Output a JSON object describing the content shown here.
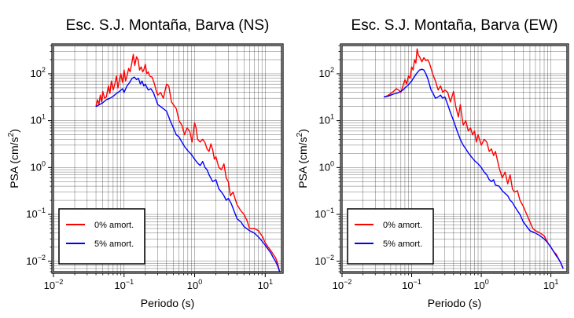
{
  "chart_data": [
    {
      "type": "line",
      "title": "Esc. S.J. Montaña, Barva (NS)",
      "xlabel": "Periodo (s)",
      "ylabel_main": "PSA (cm/s",
      "ylabel_sup": "2",
      "ylabel_end": ")",
      "xscale": "log",
      "yscale": "log",
      "xlim": [
        0.01,
        17
      ],
      "ylim": [
        0.006,
        400
      ],
      "grid": true,
      "legend_position": "bottom-left",
      "xticks": [
        {
          "value": 0.01,
          "base": "10",
          "exp": "−2"
        },
        {
          "value": 0.1,
          "base": "10",
          "exp": "−1"
        },
        {
          "value": 1,
          "base": "10",
          "exp": "0"
        },
        {
          "value": 10,
          "base": "10",
          "exp": "1"
        }
      ],
      "yticks": [
        {
          "value": 0.01,
          "base": "10",
          "exp": "−2"
        },
        {
          "value": 0.1,
          "base": "10",
          "exp": "−1"
        },
        {
          "value": 1,
          "base": "10",
          "exp": "0"
        },
        {
          "value": 10,
          "base": "10",
          "exp": "1"
        },
        {
          "value": 100,
          "base": "10",
          "exp": "2"
        }
      ],
      "series": [
        {
          "name": "0% amort.",
          "color": "#ff0000",
          "x": [
            0.04,
            0.042,
            0.044,
            0.046,
            0.048,
            0.05,
            0.053,
            0.056,
            0.06,
            0.063,
            0.066,
            0.07,
            0.074,
            0.078,
            0.082,
            0.086,
            0.09,
            0.095,
            0.1,
            0.105,
            0.11,
            0.116,
            0.122,
            0.128,
            0.135,
            0.142,
            0.15,
            0.158,
            0.166,
            0.175,
            0.184,
            0.19,
            0.2,
            0.21,
            0.22,
            0.23,
            0.25,
            0.27,
            0.29,
            0.3,
            0.33,
            0.36,
            0.4,
            0.43,
            0.47,
            0.5,
            0.55,
            0.6,
            0.66,
            0.72,
            0.78,
            0.85,
            0.92,
            1.0,
            1.05,
            1.1,
            1.2,
            1.3,
            1.4,
            1.5,
            1.6,
            1.7,
            1.8,
            1.9,
            2.0,
            2.2,
            2.4,
            2.6,
            2.8,
            3.0,
            3.2,
            3.5,
            3.8,
            4.0,
            4.5,
            5.0,
            5.5,
            6.0,
            7.0,
            8.0,
            9.0,
            10,
            11,
            12,
            13,
            14,
            15,
            16
          ],
          "y": [
            20,
            28,
            22,
            35,
            25,
            42,
            30,
            32,
            55,
            38,
            70,
            45,
            60,
            90,
            50,
            75,
            100,
            65,
            120,
            70,
            90,
            130,
            110,
            160,
            260,
            150,
            230,
            200,
            120,
            140,
            110,
            120,
            160,
            100,
            110,
            90,
            85,
            60,
            40,
            35,
            40,
            30,
            60,
            55,
            25,
            22,
            18,
            10,
            8,
            5,
            7,
            6,
            3.5,
            9,
            7,
            4,
            3.5,
            4,
            3.4,
            2.5,
            2.2,
            3.2,
            2.4,
            1.5,
            1.7,
            1.0,
            0.9,
            1.2,
            0.6,
            0.5,
            0.25,
            0.3,
            0.2,
            0.16,
            0.12,
            0.1,
            0.075,
            0.05,
            0.05,
            0.045,
            0.035,
            0.025,
            0.02,
            0.017,
            0.014,
            0.012,
            0.009,
            0.006
          ]
        },
        {
          "name": "5% amort.",
          "color": "#0000ff",
          "x": [
            0.04,
            0.045,
            0.05,
            0.056,
            0.063,
            0.07,
            0.078,
            0.086,
            0.095,
            0.1,
            0.11,
            0.12,
            0.13,
            0.14,
            0.15,
            0.16,
            0.17,
            0.18,
            0.19,
            0.2,
            0.22,
            0.24,
            0.26,
            0.28,
            0.3,
            0.33,
            0.36,
            0.4,
            0.45,
            0.5,
            0.55,
            0.6,
            0.66,
            0.72,
            0.8,
            0.9,
            1.0,
            1.1,
            1.2,
            1.3,
            1.4,
            1.5,
            1.6,
            1.8,
            2.0,
            2.2,
            2.4,
            2.6,
            2.8,
            3.0,
            3.3,
            3.6,
            4.0,
            4.5,
            5.0,
            6.0,
            7.0,
            8.0,
            9.0,
            10,
            11,
            12,
            13,
            14,
            15,
            16
          ],
          "y": [
            20,
            22,
            24,
            28,
            30,
            33,
            38,
            42,
            48,
            40,
            55,
            65,
            80,
            85,
            75,
            80,
            60,
            70,
            55,
            60,
            45,
            48,
            40,
            30,
            22,
            20,
            18,
            16,
            10,
            7,
            5,
            4.5,
            3.5,
            2.8,
            2.3,
            1.9,
            1.5,
            1.25,
            1.1,
            1.35,
            1.0,
            0.9,
            0.7,
            0.5,
            0.55,
            0.35,
            0.3,
            0.25,
            0.2,
            0.22,
            0.17,
            0.12,
            0.08,
            0.07,
            0.055,
            0.045,
            0.04,
            0.033,
            0.027,
            0.022,
            0.018,
            0.015,
            0.012,
            0.01,
            0.008,
            0.006
          ]
        }
      ]
    },
    {
      "type": "line",
      "title": "Esc. S.J. Montaña, Barva (EW)",
      "xlabel": "Periodo (s)",
      "ylabel_main": "PSA (cm/s",
      "ylabel_sup": "2",
      "ylabel_end": ")",
      "xscale": "log",
      "yscale": "log",
      "xlim": [
        0.01,
        17
      ],
      "ylim": [
        0.006,
        400
      ],
      "grid": true,
      "legend_position": "bottom-left",
      "xticks": [
        {
          "value": 0.01,
          "base": "10",
          "exp": "−2"
        },
        {
          "value": 0.1,
          "base": "10",
          "exp": "−1"
        },
        {
          "value": 1,
          "base": "10",
          "exp": "0"
        },
        {
          "value": 10,
          "base": "10",
          "exp": "1"
        }
      ],
      "yticks": [
        {
          "value": 0.01,
          "base": "10",
          "exp": "−2"
        },
        {
          "value": 0.1,
          "base": "10",
          "exp": "−1"
        },
        {
          "value": 1,
          "base": "10",
          "exp": "0"
        },
        {
          "value": 10,
          "base": "10",
          "exp": "1"
        },
        {
          "value": 100,
          "base": "10",
          "exp": "2"
        }
      ],
      "series": [
        {
          "name": "0% amort.",
          "color": "#ff0000",
          "x": [
            0.04,
            0.045,
            0.05,
            0.055,
            0.06,
            0.065,
            0.07,
            0.075,
            0.08,
            0.085,
            0.09,
            0.095,
            0.1,
            0.105,
            0.11,
            0.115,
            0.12,
            0.125,
            0.13,
            0.14,
            0.15,
            0.16,
            0.17,
            0.18,
            0.19,
            0.2,
            0.22,
            0.24,
            0.26,
            0.28,
            0.3,
            0.33,
            0.36,
            0.4,
            0.43,
            0.47,
            0.5,
            0.55,
            0.6,
            0.65,
            0.7,
            0.75,
            0.8,
            0.85,
            0.9,
            1.0,
            1.1,
            1.2,
            1.3,
            1.4,
            1.5,
            1.6,
            1.8,
            2.0,
            2.2,
            2.4,
            2.6,
            2.8,
            3.0,
            3.3,
            3.6,
            4.0,
            4.5,
            5.0,
            5.5,
            6.0,
            7.0,
            8.0,
            9.0,
            10,
            11,
            12,
            13,
            14,
            15
          ],
          "y": [
            32,
            34,
            38,
            42,
            48,
            45,
            40,
            55,
            75,
            60,
            90,
            80,
            140,
            120,
            200,
            170,
            340,
            250,
            230,
            180,
            220,
            190,
            200,
            170,
            130,
            100,
            70,
            45,
            55,
            40,
            45,
            40,
            25,
            42,
            20,
            12,
            22,
            8,
            10,
            6,
            7,
            5,
            6,
            3.5,
            5,
            3,
            4,
            3.5,
            2.2,
            2.5,
            1.8,
            2.2,
            1.0,
            0.6,
            0.8,
            0.45,
            0.7,
            0.35,
            0.3,
            0.32,
            0.2,
            0.15,
            0.1,
            0.07,
            0.05,
            0.045,
            0.04,
            0.035,
            0.025,
            0.02,
            0.016,
            0.014,
            0.011,
            0.009,
            0.007
          ]
        },
        {
          "name": "5% amort.",
          "color": "#0000ff",
          "x": [
            0.04,
            0.045,
            0.05,
            0.055,
            0.06,
            0.065,
            0.07,
            0.075,
            0.08,
            0.09,
            0.1,
            0.11,
            0.12,
            0.13,
            0.14,
            0.15,
            0.16,
            0.17,
            0.18,
            0.19,
            0.2,
            0.22,
            0.24,
            0.26,
            0.28,
            0.3,
            0.33,
            0.36,
            0.4,
            0.45,
            0.5,
            0.55,
            0.6,
            0.66,
            0.72,
            0.8,
            0.9,
            1.0,
            1.1,
            1.2,
            1.3,
            1.4,
            1.5,
            1.6,
            1.8,
            2.0,
            2.2,
            2.4,
            2.6,
            2.8,
            3.0,
            3.3,
            3.6,
            4.0,
            4.5,
            5.0,
            6.0,
            7.0,
            8.0,
            9.0,
            10,
            11,
            12,
            13,
            14,
            15
          ],
          "y": [
            32,
            33,
            35,
            37,
            38,
            40,
            42,
            45,
            50,
            58,
            70,
            88,
            105,
            120,
            125,
            120,
            100,
            80,
            60,
            45,
            40,
            30,
            32,
            35,
            30,
            32,
            22,
            15,
            10,
            6,
            4,
            3,
            2.5,
            2.0,
            1.7,
            1.4,
            1.2,
            1.0,
            0.8,
            0.7,
            0.55,
            0.5,
            0.55,
            0.42,
            0.4,
            0.32,
            0.28,
            0.25,
            0.2,
            0.18,
            0.15,
            0.12,
            0.1,
            0.07,
            0.055,
            0.045,
            0.04,
            0.035,
            0.03,
            0.025,
            0.02,
            0.016,
            0.013,
            0.011,
            0.009,
            0.007
          ]
        }
      ]
    }
  ]
}
